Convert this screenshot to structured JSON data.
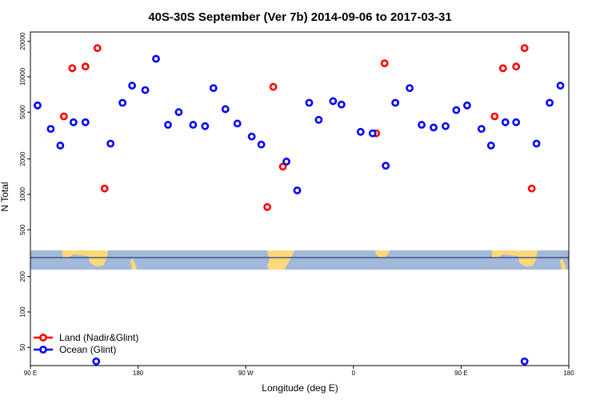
{
  "chart_data": {
    "type": "scatter",
    "title": "40S-30S September (Ver 7b)   2014-09-06 to 2017-03-31",
    "xlabel": "Longitude (deg E)",
    "ylabel": "N Total",
    "y_scale": "log",
    "xlim": [
      90,
      540
    ],
    "ylim": [
      35,
      24000
    ],
    "x_ticks": [
      {
        "value": 90,
        "label": "90 E"
      },
      {
        "value": 180,
        "label": "180"
      },
      {
        "value": 270,
        "label": "90 W"
      },
      {
        "value": 360,
        "label": "0"
      },
      {
        "value": 450,
        "label": "90 E"
      },
      {
        "value": 540,
        "label": "180"
      }
    ],
    "y_ticks": [
      {
        "value": 50,
        "label": "50"
      },
      {
        "value": 100,
        "label": "100"
      },
      {
        "value": 200,
        "label": "200"
      },
      {
        "value": 500,
        "label": "500"
      },
      {
        "value": 1000,
        "label": "1000"
      },
      {
        "value": 2000,
        "label": "2000"
      },
      {
        "value": 5000,
        "label": "5000"
      },
      {
        "value": 10000,
        "label": "10000"
      },
      {
        "value": 20000,
        "label": "20000"
      }
    ],
    "legend_position": "bottom-left",
    "series": [
      {
        "name": "Land (Nadir&Glint)",
        "color": "#ff0000",
        "points": [
          {
            "x": 118,
            "y": 4600
          },
          {
            "x": 125,
            "y": 11800
          },
          {
            "x": 136,
            "y": 12200
          },
          {
            "x": 146,
            "y": 17500
          },
          {
            "x": 152,
            "y": 1120
          },
          {
            "x": 288,
            "y": 780
          },
          {
            "x": 293,
            "y": 8200
          },
          {
            "x": 301,
            "y": 1720
          },
          {
            "x": 379,
            "y": 3300
          },
          {
            "x": 386,
            "y": 13000
          },
          {
            "x": 478,
            "y": 4600
          },
          {
            "x": 485,
            "y": 11800
          },
          {
            "x": 496,
            "y": 12200
          },
          {
            "x": 503,
            "y": 17500
          },
          {
            "x": 509,
            "y": 1120
          }
        ]
      },
      {
        "name": "Ocean (Glint)",
        "color": "#0000ff",
        "points": [
          {
            "x": 96,
            "y": 5700
          },
          {
            "x": 107,
            "y": 3600
          },
          {
            "x": 115,
            "y": 2600
          },
          {
            "x": 126,
            "y": 4100
          },
          {
            "x": 136,
            "y": 4100
          },
          {
            "x": 145,
            "y": 38
          },
          {
            "x": 157,
            "y": 2700
          },
          {
            "x": 167,
            "y": 6000
          },
          {
            "x": 175,
            "y": 8400
          },
          {
            "x": 186,
            "y": 7700
          },
          {
            "x": 195,
            "y": 14200
          },
          {
            "x": 205,
            "y": 3900
          },
          {
            "x": 214,
            "y": 5000
          },
          {
            "x": 226,
            "y": 3900
          },
          {
            "x": 236,
            "y": 3800
          },
          {
            "x": 243,
            "y": 8000
          },
          {
            "x": 253,
            "y": 5300
          },
          {
            "x": 263,
            "y": 4000
          },
          {
            "x": 275,
            "y": 3100
          },
          {
            "x": 283,
            "y": 2650
          },
          {
            "x": 304,
            "y": 1900
          },
          {
            "x": 313,
            "y": 1080
          },
          {
            "x": 323,
            "y": 6000
          },
          {
            "x": 331,
            "y": 4300
          },
          {
            "x": 343,
            "y": 6200
          },
          {
            "x": 350,
            "y": 5800
          },
          {
            "x": 366,
            "y": 3400
          },
          {
            "x": 376,
            "y": 3300
          },
          {
            "x": 387,
            "y": 1750
          },
          {
            "x": 395,
            "y": 6000
          },
          {
            "x": 407,
            "y": 8000
          },
          {
            "x": 417,
            "y": 3900
          },
          {
            "x": 427,
            "y": 3700
          },
          {
            "x": 437,
            "y": 3800
          },
          {
            "x": 446,
            "y": 5200
          },
          {
            "x": 455,
            "y": 5700
          },
          {
            "x": 467,
            "y": 3600
          },
          {
            "x": 475,
            "y": 2600
          },
          {
            "x": 487,
            "y": 4100
          },
          {
            "x": 496,
            "y": 4100
          },
          {
            "x": 503,
            "y": 38
          },
          {
            "x": 513,
            "y": 2700
          },
          {
            "x": 524,
            "y": 6000
          },
          {
            "x": 533,
            "y": 8400
          }
        ]
      }
    ],
    "map_strip": {
      "ocean_color": "#a3b9d9",
      "land_color": "#ffd87a",
      "line_color": "#2a3f80"
    }
  }
}
